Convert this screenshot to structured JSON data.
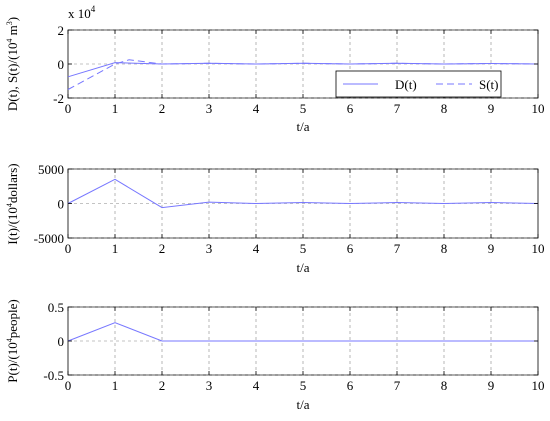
{
  "chart_data": [
    {
      "type": "line",
      "xlabel": "t/a",
      "ylabel": "D(t), S(t)/(10^4 m^3)",
      "yexponent": "x 10^4",
      "xlim": [
        0,
        10
      ],
      "ylim": [
        -20000,
        20000
      ],
      "xticks": [
        "0",
        "1",
        "2",
        "3",
        "4",
        "5",
        "6",
        "7",
        "8",
        "9",
        "10"
      ],
      "yticks": [
        "-2",
        "0",
        "2"
      ],
      "yticks_values": [
        -20000,
        0,
        20000
      ],
      "grid": true,
      "legend_position": "bottom-right",
      "series": [
        {
          "name": "D(t)",
          "style": "solid",
          "color": "#7777ff",
          "x": [
            0,
            1,
            2,
            3,
            4,
            5,
            6,
            7,
            8,
            9,
            10
          ],
          "y": [
            -7500,
            800,
            0,
            400,
            0,
            400,
            0,
            400,
            0,
            300,
            0
          ]
        },
        {
          "name": "S(t)",
          "style": "dashed",
          "color": "#7777ff",
          "x": [
            0,
            1,
            1.3,
            2,
            3,
            4,
            5,
            6,
            7,
            8,
            9,
            10
          ],
          "y": [
            -15000,
            0,
            2500,
            0,
            400,
            0,
            400,
            0,
            400,
            0,
            300,
            0
          ]
        }
      ]
    },
    {
      "type": "line",
      "xlabel": "t/a",
      "ylabel": "I(t)/(10^4 dollars)",
      "xlim": [
        0,
        10
      ],
      "ylim": [
        -5000,
        5000
      ],
      "xticks": [
        "0",
        "1",
        "2",
        "3",
        "4",
        "5",
        "6",
        "7",
        "8",
        "9",
        "10"
      ],
      "yticks": [
        "-5000",
        "0",
        "5000"
      ],
      "yticks_values": [
        -5000,
        0,
        5000
      ],
      "grid": true,
      "series": [
        {
          "style": "solid",
          "color": "#7777ff",
          "x": [
            0,
            1,
            2,
            3,
            4,
            5,
            6,
            7,
            8,
            9,
            10
          ],
          "y": [
            0,
            3500,
            -600,
            200,
            0,
            150,
            0,
            150,
            0,
            150,
            0
          ]
        }
      ]
    },
    {
      "type": "line",
      "xlabel": "t/a",
      "ylabel": "P(t)/(10^4 people)",
      "xlim": [
        0,
        10
      ],
      "ylim": [
        -0.5,
        0.5
      ],
      "xticks": [
        "0",
        "1",
        "2",
        "3",
        "4",
        "5",
        "6",
        "7",
        "8",
        "9",
        "10"
      ],
      "yticks": [
        "-0.5",
        "0",
        "0.5"
      ],
      "yticks_values": [
        -0.5,
        0,
        0.5
      ],
      "grid": true,
      "series": [
        {
          "style": "solid",
          "color": "#7777ff",
          "x": [
            0,
            1,
            2,
            3,
            4,
            5,
            6,
            7,
            8,
            9,
            10
          ],
          "y": [
            0,
            0.27,
            0,
            0,
            0,
            0,
            0,
            0,
            0,
            0,
            0
          ]
        }
      ]
    }
  ]
}
